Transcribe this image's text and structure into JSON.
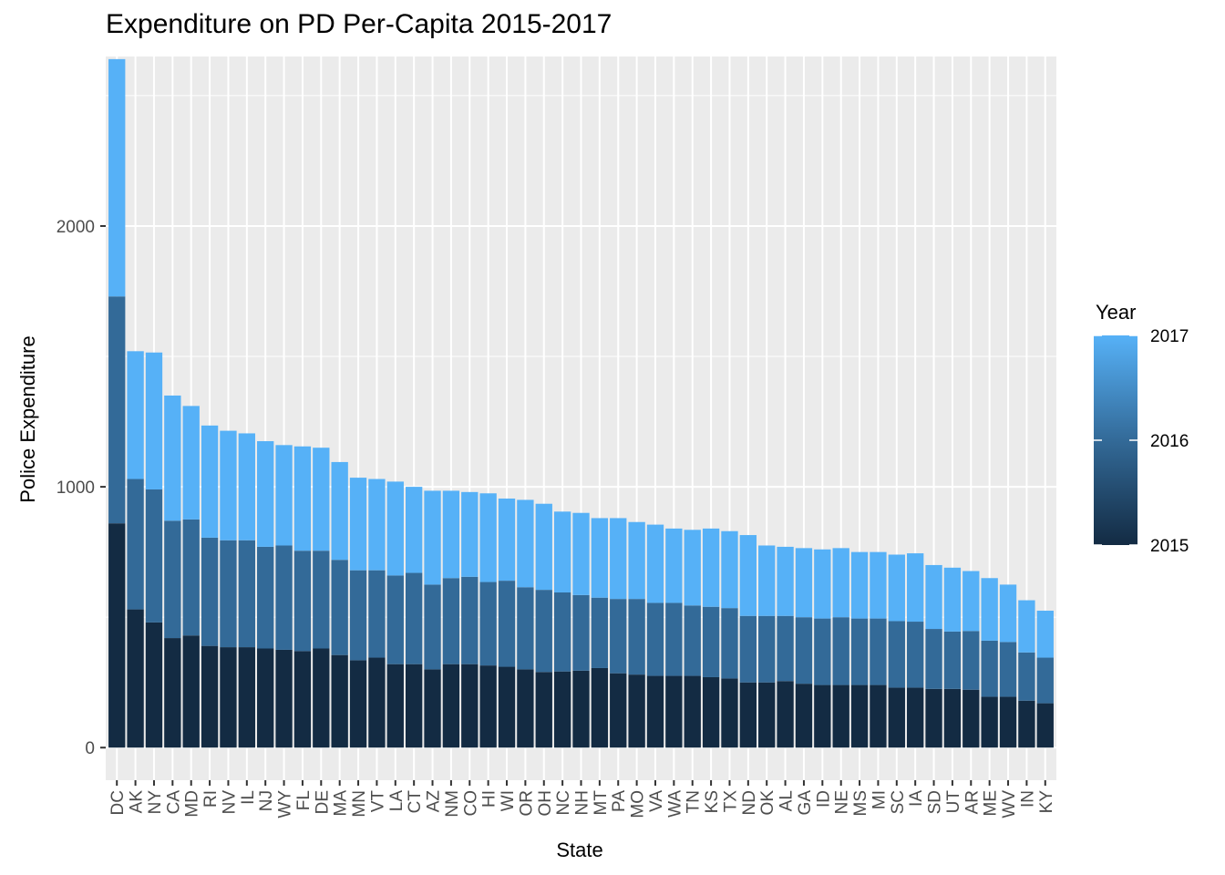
{
  "chart_data": {
    "type": "bar",
    "stacked": true,
    "title": "Expenditure on PD Per-Capita 2015-2017",
    "xlabel": "State",
    "ylabel": "Police Expenditure",
    "ylim": [
      -125,
      2650
    ],
    "yticks": [
      0,
      1000,
      2000
    ],
    "grid": true,
    "legend": {
      "title": "Year",
      "placement": "right",
      "labels": [
        "2017",
        "2016",
        "2015"
      ],
      "gradient": [
        "#56B1F7",
        "#132B43"
      ]
    },
    "categories": [
      "DC",
      "AK",
      "NY",
      "CA",
      "MD",
      "RI",
      "NV",
      "IL",
      "NJ",
      "WY",
      "FL",
      "DE",
      "MA",
      "MN",
      "VT",
      "LA",
      "CT",
      "AZ",
      "NM",
      "CO",
      "HI",
      "WI",
      "OR",
      "OH",
      "NC",
      "NH",
      "MT",
      "PA",
      "MO",
      "VA",
      "WA",
      "TN",
      "KS",
      "TX",
      "ND",
      "OK",
      "AL",
      "GA",
      "ID",
      "NE",
      "MS",
      "MI",
      "SC",
      "IA",
      "SD",
      "UT",
      "AR",
      "ME",
      "WV",
      "IN",
      "KY"
    ],
    "series": [
      {
        "name": "2015",
        "color": "#132B43",
        "values": [
          860,
          530,
          480,
          420,
          430,
          390,
          385,
          385,
          380,
          375,
          370,
          380,
          355,
          335,
          345,
          320,
          320,
          300,
          320,
          320,
          315,
          310,
          300,
          290,
          292,
          295,
          305,
          285,
          280,
          275,
          275,
          275,
          270,
          265,
          250,
          250,
          255,
          245,
          240,
          240,
          240,
          240,
          230,
          230,
          225,
          225,
          222,
          195,
          195,
          180,
          170
        ]
      },
      {
        "name": "2016",
        "color": "#336A98",
        "values": [
          870,
          500,
          510,
          450,
          445,
          415,
          410,
          410,
          390,
          400,
          385,
          375,
          365,
          345,
          335,
          340,
          350,
          325,
          330,
          335,
          320,
          330,
          315,
          315,
          303,
          290,
          270,
          285,
          290,
          280,
          280,
          270,
          270,
          270,
          255,
          255,
          250,
          255,
          255,
          260,
          255,
          255,
          255,
          253,
          230,
          220,
          225,
          215,
          210,
          185,
          175
        ]
      },
      {
        "name": "2017",
        "color": "#56B1F7",
        "values": [
          910,
          490,
          525,
          480,
          435,
          430,
          420,
          410,
          405,
          385,
          400,
          395,
          375,
          355,
          350,
          360,
          330,
          360,
          335,
          325,
          340,
          315,
          335,
          330,
          310,
          315,
          305,
          310,
          295,
          300,
          285,
          290,
          300,
          295,
          310,
          270,
          265,
          265,
          265,
          265,
          255,
          255,
          255,
          262,
          245,
          245,
          230,
          240,
          220,
          200,
          180
        ]
      }
    ]
  }
}
